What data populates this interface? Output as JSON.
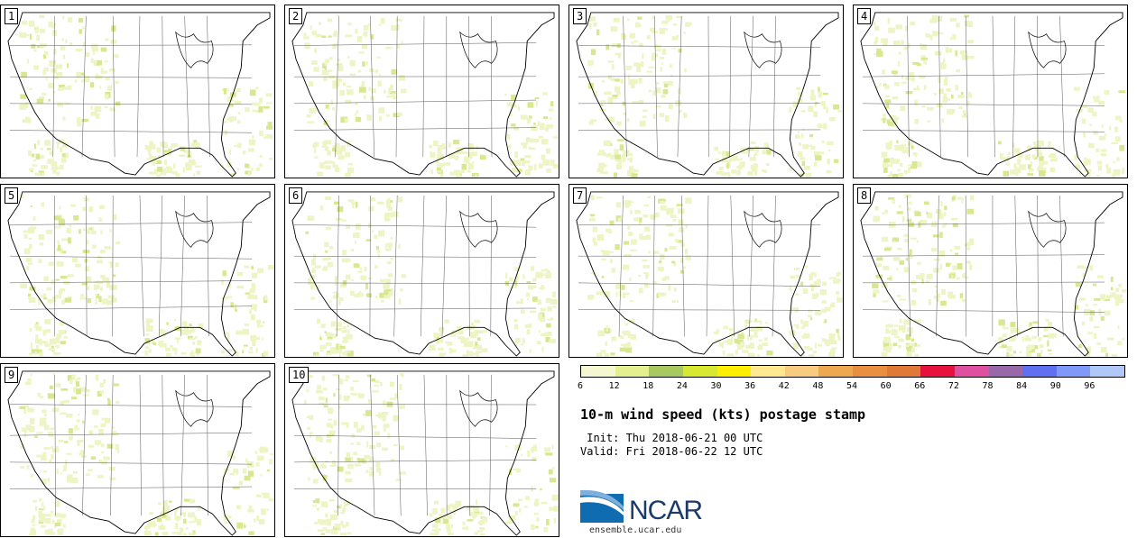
{
  "panels": [
    {
      "label": "1"
    },
    {
      "label": "2"
    },
    {
      "label": "3"
    },
    {
      "label": "4"
    },
    {
      "label": "5"
    },
    {
      "label": "6"
    },
    {
      "label": "7"
    },
    {
      "label": "8"
    },
    {
      "label": "9"
    },
    {
      "label": "10"
    }
  ],
  "legend": {
    "colors": [
      "#f5f7d0",
      "#e2f090",
      "#a8c860",
      "#d8e830",
      "#ffee00",
      "#ffe890",
      "#f8cc80",
      "#eea850",
      "#e89040",
      "#e07838",
      "#e8103c",
      "#e050a0",
      "#9868a8",
      "#6070f0",
      "#8098f8",
      "#b0c8f8"
    ],
    "ticks": [
      "6",
      "12",
      "18",
      "24",
      "30",
      "36",
      "42",
      "48",
      "54",
      "60",
      "66",
      "72",
      "78",
      "84",
      "90",
      "96"
    ]
  },
  "title": "10-m wind speed (kts) postage stamp",
  "init": " Init: Thu 2018-06-21 00 UTC",
  "valid": "Valid: Fri 2018-06-22 12 UTC",
  "logo": {
    "name": "NCAR",
    "url": "ensemble.ucar.edu"
  }
}
